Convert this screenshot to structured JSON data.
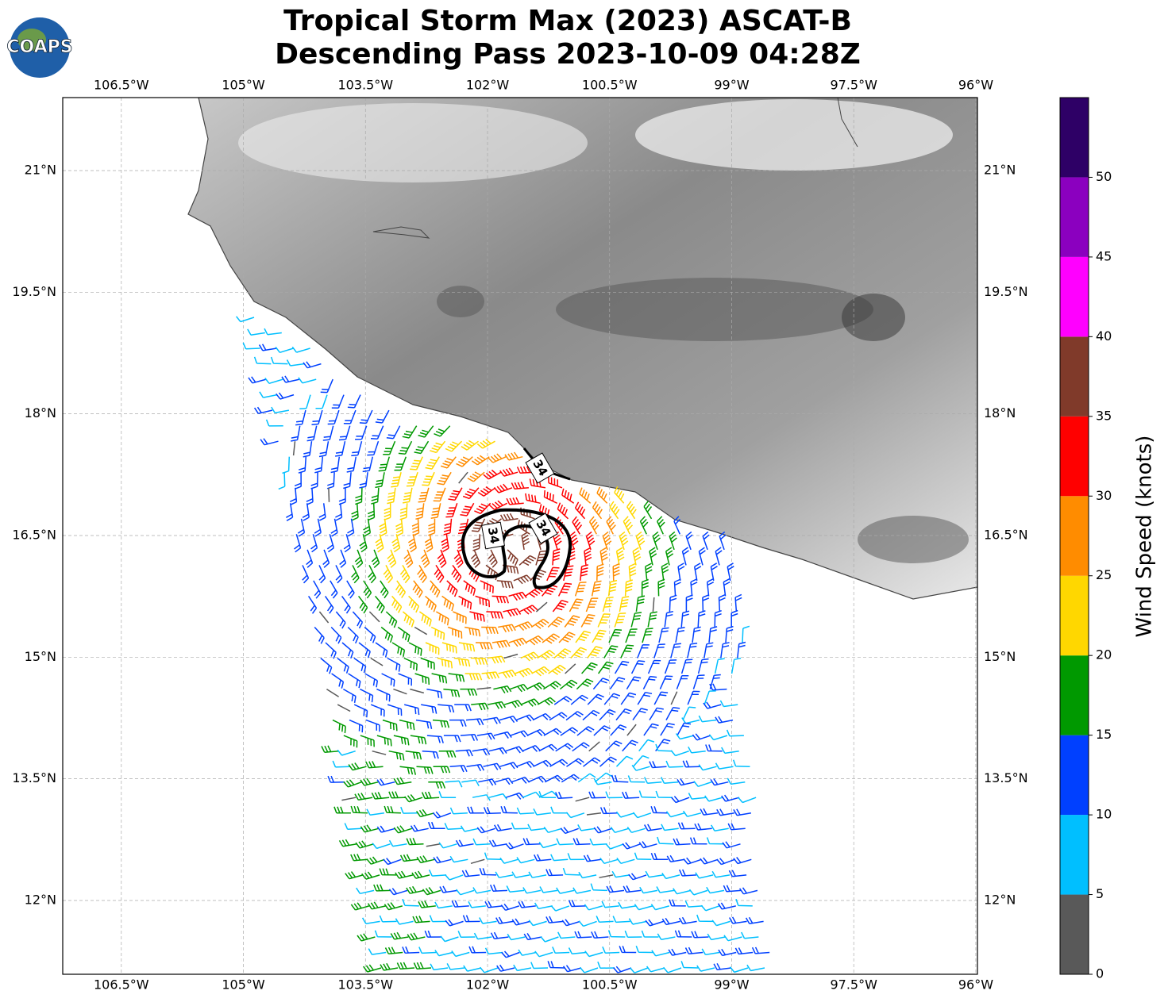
{
  "chart_data": {
    "type": "wind_barb_map",
    "title": "Tropical Storm Max (2023) ASCAT-B",
    "subtitle": "Descending Pass 2023-10-09 04:28Z",
    "logo": "COAPS",
    "xlim": [
      -107.22,
      -95.98
    ],
    "ylim": [
      11.09,
      21.9
    ],
    "xticks": [
      {
        "value": -106.5,
        "label": "106.5°W"
      },
      {
        "value": -105,
        "label": "105°W"
      },
      {
        "value": -103.5,
        "label": "103.5°W"
      },
      {
        "value": -102,
        "label": "102°W"
      },
      {
        "value": -100.5,
        "label": "100.5°W"
      },
      {
        "value": -99,
        "label": "99°W"
      },
      {
        "value": -97.5,
        "label": "97.5°W"
      },
      {
        "value": -96,
        "label": "96°W"
      }
    ],
    "yticks": [
      {
        "value": 12,
        "label": "12°N"
      },
      {
        "value": 13.5,
        "label": "13.5°N"
      },
      {
        "value": 15,
        "label": "15°N"
      },
      {
        "value": 16.5,
        "label": "16.5°N"
      },
      {
        "value": 18,
        "label": "18°N"
      },
      {
        "value": 19.5,
        "label": "19.5°N"
      },
      {
        "value": 21,
        "label": "21°N"
      }
    ],
    "grid": true,
    "contour_labels": [
      34,
      34,
      34
    ],
    "colorbar": {
      "label": "Wind Speed (knots)",
      "lim": [
        0,
        55
      ],
      "ticks": [
        0,
        5,
        10,
        15,
        20,
        25,
        30,
        35,
        40,
        45,
        50
      ],
      "colors": [
        "#595959",
        "#00bfff",
        "#0040ff",
        "#009900",
        "#ffd700",
        "#ff8c00",
        "#ff0000",
        "#803a2a",
        "#ff00ff",
        "#8b00bf",
        "#2e0066"
      ]
    }
  }
}
